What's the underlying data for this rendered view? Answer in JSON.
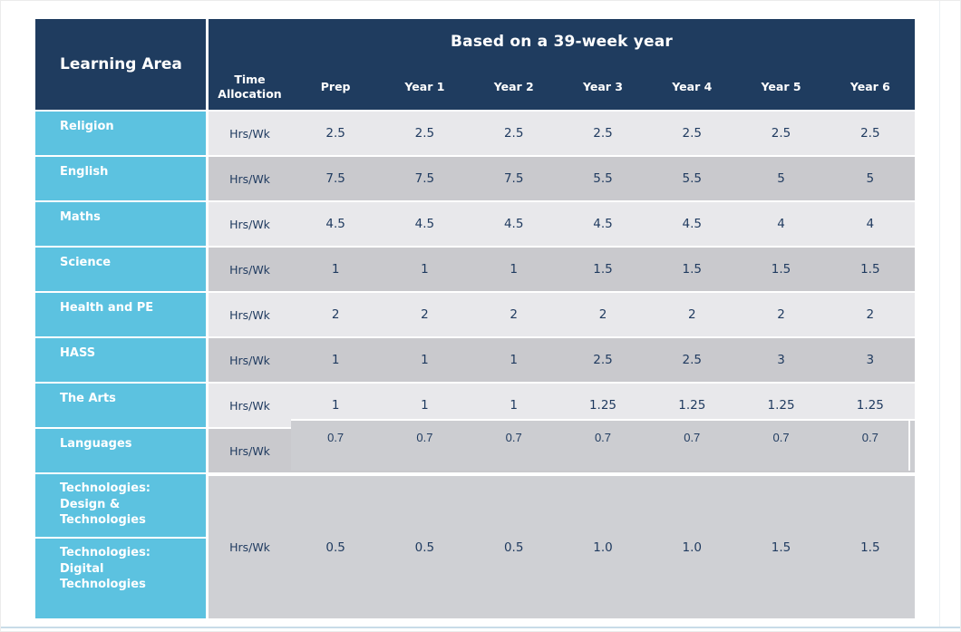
{
  "table": {
    "corner_header": "Learning Area",
    "banner": "Based on a 39-week year",
    "sub_headers": [
      "Time Allocation",
      "Prep",
      "Year 1",
      "Year 2",
      "Year 3",
      "Year 4",
      "Year 5",
      "Year 6"
    ],
    "rows": [
      {
        "label": "Religion",
        "unit": "Hrs/Wk",
        "values": [
          "2.5",
          "2.5",
          "2.5",
          "2.5",
          "2.5",
          "2.5",
          "2.5"
        ]
      },
      {
        "label": "English",
        "unit": "Hrs/Wk",
        "values": [
          "7.5",
          "7.5",
          "7.5",
          "5.5",
          "5.5",
          "5",
          "5"
        ]
      },
      {
        "label": "Maths",
        "unit": "Hrs/Wk",
        "values": [
          "4.5",
          "4.5",
          "4.5",
          "4.5",
          "4.5",
          "4",
          "4"
        ]
      },
      {
        "label": "Science",
        "unit": "Hrs/Wk",
        "values": [
          "1",
          "1",
          "1",
          "1.5",
          "1.5",
          "1.5",
          "1.5"
        ]
      },
      {
        "label": "Health and PE",
        "unit": "Hrs/Wk",
        "values": [
          "2",
          "2",
          "2",
          "2",
          "2",
          "2",
          "2"
        ]
      },
      {
        "label": "HASS",
        "unit": "Hrs/Wk",
        "values": [
          "1",
          "1",
          "1",
          "2.5",
          "2.5",
          "3",
          "3"
        ]
      },
      {
        "label": "The Arts",
        "unit": "Hrs/Wk",
        "values": [
          "1",
          "1",
          "1",
          "1.25",
          "1.25",
          "1.25",
          "1.25"
        ]
      },
      {
        "label": "Languages",
        "unit": "Hrs/Wk",
        "values": [
          "0.7",
          "0.7",
          "0.7",
          "0.7",
          "0.7",
          "0.7",
          "0.7"
        ]
      }
    ],
    "merged_row": {
      "labels": [
        "Technologies: Design & Technologies",
        "Technologies: Digital Technologies"
      ],
      "unit": "Hrs/Wk",
      "values": [
        "0.5",
        "0.5",
        "0.5",
        "1.0",
        "1.0",
        "1.5",
        "1.5"
      ]
    },
    "colors": {
      "header_bg": "#1F3C5F",
      "label_bg": "#5CC2E0",
      "row_light": "#E8E8EB",
      "row_dark": "#C9C9CD",
      "merged_bg": "#CFD0D4",
      "patch_bg": "#CCCDD1",
      "value_text": "#1F3A5F",
      "bottom_accent_line": "#C8DCE8"
    }
  }
}
